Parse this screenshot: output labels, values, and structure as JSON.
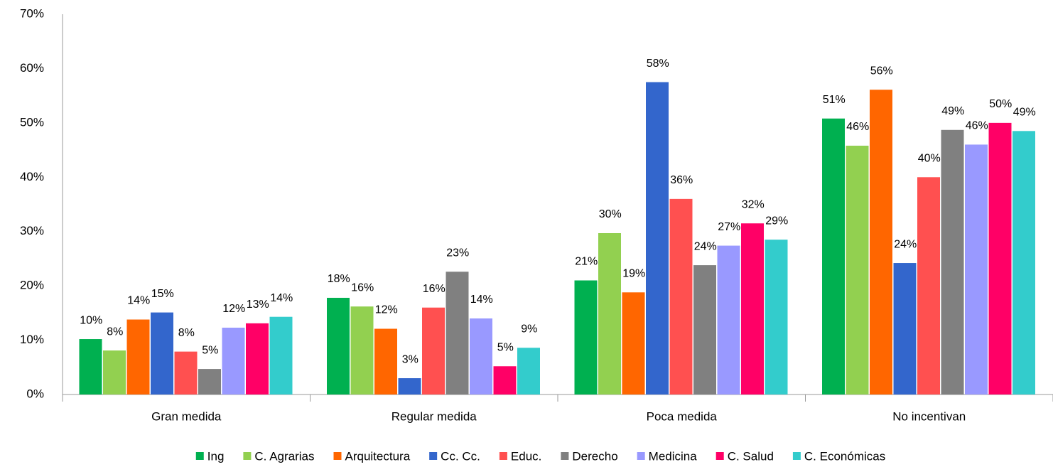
{
  "chart_data": {
    "type": "bar",
    "categories": [
      "Gran medida",
      "Regular medida",
      "Poca medida",
      "No incentivan"
    ],
    "ylim": [
      0,
      70
    ],
    "yticks": [
      {
        "value": 0,
        "label": "0%"
      },
      {
        "value": 10,
        "label": "10%"
      },
      {
        "value": 20,
        "label": "20%"
      },
      {
        "value": 30,
        "label": "30%"
      },
      {
        "value": 40,
        "label": "40%"
      },
      {
        "value": 50,
        "label": "50%"
      },
      {
        "value": 60,
        "label": "60%"
      },
      {
        "value": 70,
        "label": "70%"
      }
    ],
    "legend": "bottom",
    "series": [
      {
        "name": "Ing",
        "color": "#00b050",
        "values": [
          10.2,
          17.8,
          21,
          50.8
        ],
        "value_labels": [
          "10%",
          "18%",
          "21%",
          "51%"
        ]
      },
      {
        "name": "C. Agrarias",
        "color": "#92d050",
        "values": [
          8.1,
          16.2,
          29.7,
          45.8
        ],
        "value_labels": [
          "8%",
          "16%",
          "30%",
          "46%"
        ]
      },
      {
        "name": "Arquitectura",
        "color": "#ff6600",
        "values": [
          13.8,
          12.1,
          18.8,
          56.1
        ],
        "value_labels": [
          "14%",
          "12%",
          "19%",
          "56%"
        ]
      },
      {
        "name": "Cc. Cc.",
        "color": "#3366cc",
        "values": [
          15.1,
          3,
          57.5,
          24.2
        ],
        "value_labels": [
          "15%",
          "3%",
          "58%",
          "24%"
        ]
      },
      {
        "name": "Educ.",
        "color": "#ff5050",
        "values": [
          7.9,
          16,
          36,
          40
        ],
        "value_labels": [
          "8%",
          "16%",
          "36%",
          "40%"
        ]
      },
      {
        "name": "Derecho",
        "color": "#808080",
        "values": [
          4.7,
          22.6,
          23.8,
          48.7
        ],
        "value_labels": [
          "5%",
          "23%",
          "24%",
          "49%"
        ]
      },
      {
        "name": "Medicina",
        "color": "#9999ff",
        "values": [
          12.3,
          14,
          27.4,
          46
        ],
        "value_labels": [
          "12%",
          "14%",
          "27%",
          "46%"
        ]
      },
      {
        "name": "C. Salud",
        "color": "#ff0066",
        "values": [
          13.1,
          5.2,
          31.5,
          50
        ],
        "value_labels": [
          "13%",
          "5%",
          "32%",
          "50%"
        ]
      },
      {
        "name": "C. Económicas",
        "color": "#33cccc",
        "values": [
          14.3,
          8.6,
          28.5,
          48.5
        ],
        "value_labels": [
          "14%",
          "9%",
          "29%",
          "49%"
        ]
      }
    ]
  }
}
